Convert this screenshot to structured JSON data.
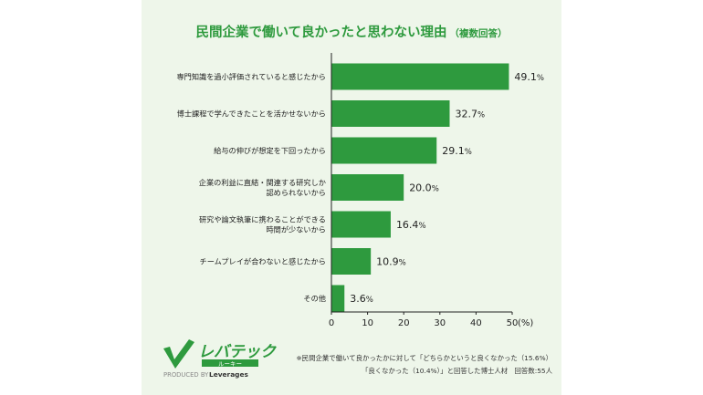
{
  "title": "民間企業で働いて良かったと思わない理由",
  "subtitle": "（複数回答）",
  "chart_data": {
    "type": "bar",
    "orientation": "horizontal",
    "categories": [
      [
        "専門知識を過小評価されていると感じたから"
      ],
      [
        "博士課程で学んできたことを活かせないから"
      ],
      [
        "給与の伸びが想定を下回ったから"
      ],
      [
        "企業の利益に直結・関連する研究しか",
        "認められないから"
      ],
      [
        "研究や論文執筆に携わることができる",
        "時間が少ないから"
      ],
      [
        "チームプレイが合わないと感じたから"
      ],
      [
        "その他"
      ]
    ],
    "values": [
      49.1,
      32.7,
      29.1,
      20.0,
      16.4,
      10.9,
      3.6
    ],
    "value_labels": [
      "49.1",
      "32.7",
      "29.1",
      "20.0",
      "16.4",
      "10.9",
      "3.6"
    ],
    "value_unit": "%",
    "xlim": [
      0,
      50
    ],
    "xticks": [
      "0",
      "10",
      "20",
      "30",
      "40",
      "50"
    ],
    "xaxis_unit": "(%)",
    "bar_color": "#2e9a3e",
    "grid": false
  },
  "logo": {
    "name": "レバテック",
    "sub": "ルーキー",
    "tagline_prefix": "PRODUCED BY",
    "tagline_brand": "Leverages"
  },
  "note_lines": [
    "※民間企業で働いて良かったかに対して「どちらかというと良くなかった（15.6%）",
    "「良くなかった（10.4%）」と回答した博士人材　回答数:55人"
  ]
}
